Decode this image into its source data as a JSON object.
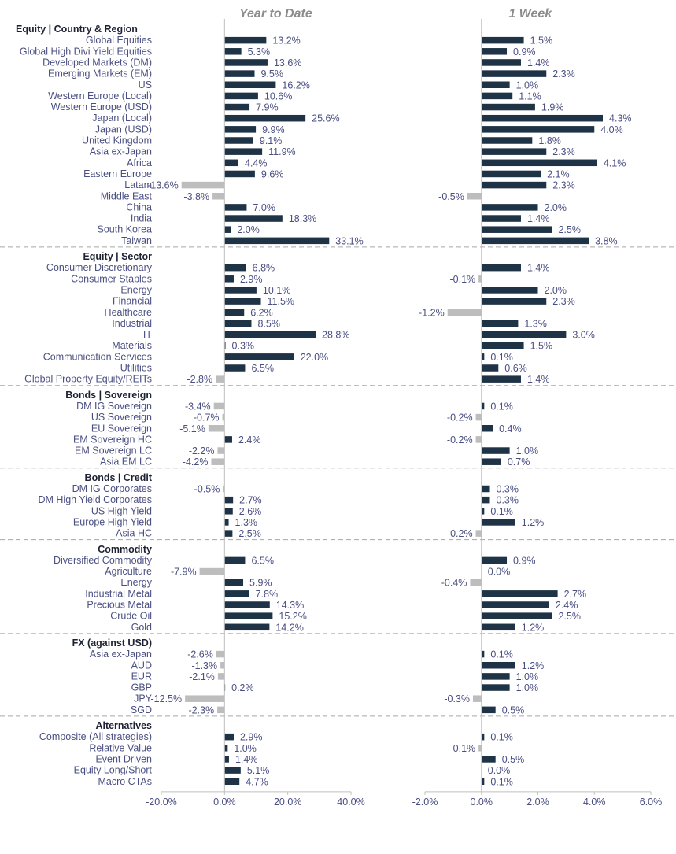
{
  "colors": {
    "positive": "#1f3347",
    "negative": "#bdbdbd",
    "label": "#4a4f82",
    "header": "#1d2233",
    "divider": "#a6a6a6",
    "axis": "#bfbfbf"
  },
  "chart_data": {
    "type": "bar",
    "orientation": "horizontal",
    "grid": false,
    "panels": [
      {
        "title": "Year to Date",
        "xlim": [
          -20,
          40
        ],
        "ticks": [
          "-20.0%",
          "0.0%",
          "20.0%",
          "40.0%"
        ],
        "tick_values": [
          -20,
          0,
          20,
          40
        ]
      },
      {
        "title": "1 Week",
        "xlim": [
          -2,
          6
        ],
        "ticks": [
          "-2.0%",
          "0.0%",
          "2.0%",
          "4.0%",
          "6.0%"
        ],
        "tick_values": [
          -2,
          0,
          2,
          4,
          6
        ]
      }
    ],
    "sections": [
      {
        "title": "Equity | Country & Region",
        "rows": [
          {
            "label": "Global Equities",
            "ytd": 13.2,
            "ytd_label": "13.2%",
            "wk": 1.5,
            "wk_label": "1.5%"
          },
          {
            "label": "Global High Divi Yield Equities",
            "ytd": 5.3,
            "ytd_label": "5.3%",
            "wk": 0.9,
            "wk_label": "0.9%"
          },
          {
            "label": "Developed Markets (DM)",
            "ytd": 13.6,
            "ytd_label": "13.6%",
            "wk": 1.4,
            "wk_label": "1.4%"
          },
          {
            "label": "Emerging Markets (EM)",
            "ytd": 9.5,
            "ytd_label": "9.5%",
            "wk": 2.3,
            "wk_label": "2.3%"
          },
          {
            "label": "US",
            "ytd": 16.2,
            "ytd_label": "16.2%",
            "wk": 1.0,
            "wk_label": "1.0%"
          },
          {
            "label": "Western Europe (Local)",
            "ytd": 10.6,
            "ytd_label": "10.6%",
            "wk": 1.1,
            "wk_label": "1.1%"
          },
          {
            "label": "Western Europe (USD)",
            "ytd": 7.9,
            "ytd_label": "7.9%",
            "wk": 1.9,
            "wk_label": "1.9%"
          },
          {
            "label": "Japan (Local)",
            "ytd": 25.6,
            "ytd_label": "25.6%",
            "wk": 4.3,
            "wk_label": "4.3%"
          },
          {
            "label": "Japan (USD)",
            "ytd": 9.9,
            "ytd_label": "9.9%",
            "wk": 4.0,
            "wk_label": "4.0%"
          },
          {
            "label": "United Kingdom",
            "ytd": 9.1,
            "ytd_label": "9.1%",
            "wk": 1.8,
            "wk_label": "1.8%"
          },
          {
            "label": "Asia ex-Japan",
            "ytd": 11.9,
            "ytd_label": "11.9%",
            "wk": 2.3,
            "wk_label": "2.3%"
          },
          {
            "label": "Africa",
            "ytd": 4.4,
            "ytd_label": "4.4%",
            "wk": 4.1,
            "wk_label": "4.1%"
          },
          {
            "label": "Eastern Europe",
            "ytd": 9.6,
            "ytd_label": "9.6%",
            "wk": 2.1,
            "wk_label": "2.1%"
          },
          {
            "label": "Latam",
            "ytd": -13.6,
            "ytd_label": "-13.6%",
            "wk": 2.3,
            "wk_label": "2.3%"
          },
          {
            "label": "Middle East",
            "ytd": -3.8,
            "ytd_label": "-3.8%",
            "wk": -0.5,
            "wk_label": "-0.5%"
          },
          {
            "label": "China",
            "ytd": 7.0,
            "ytd_label": "7.0%",
            "wk": 2.0,
            "wk_label": "2.0%"
          },
          {
            "label": "India",
            "ytd": 18.3,
            "ytd_label": "18.3%",
            "wk": 1.4,
            "wk_label": "1.4%"
          },
          {
            "label": "South Korea",
            "ytd": 2.0,
            "ytd_label": "2.0%",
            "wk": 2.5,
            "wk_label": "2.5%"
          },
          {
            "label": "Taiwan",
            "ytd": 33.1,
            "ytd_label": "33.1%",
            "wk": 3.8,
            "wk_label": "3.8%"
          }
        ]
      },
      {
        "title": "Equity | Sector",
        "rows": [
          {
            "label": "Consumer Discretionary",
            "ytd": 6.8,
            "ytd_label": "6.8%",
            "wk": 1.4,
            "wk_label": "1.4%"
          },
          {
            "label": "Consumer Staples",
            "ytd": 2.9,
            "ytd_label": "2.9%",
            "wk": -0.1,
            "wk_label": "-0.1%"
          },
          {
            "label": "Energy",
            "ytd": 10.1,
            "ytd_label": "10.1%",
            "wk": 2.0,
            "wk_label": "2.0%"
          },
          {
            "label": "Financial",
            "ytd": 11.5,
            "ytd_label": "11.5%",
            "wk": 2.3,
            "wk_label": "2.3%"
          },
          {
            "label": "Healthcare",
            "ytd": 6.2,
            "ytd_label": "6.2%",
            "wk": -1.2,
            "wk_label": "-1.2%"
          },
          {
            "label": "Industrial",
            "ytd": 8.5,
            "ytd_label": "8.5%",
            "wk": 1.3,
            "wk_label": "1.3%"
          },
          {
            "label": "IT",
            "ytd": 28.8,
            "ytd_label": "28.8%",
            "wk": 3.0,
            "wk_label": "3.0%"
          },
          {
            "label": "Materials",
            "ytd": 0.3,
            "ytd_label": "0.3%",
            "wk": 1.5,
            "wk_label": "1.5%"
          },
          {
            "label": "Communication Services",
            "ytd": 22.0,
            "ytd_label": "22.0%",
            "wk": 0.1,
            "wk_label": "0.1%"
          },
          {
            "label": "Utilities",
            "ytd": 6.5,
            "ytd_label": "6.5%",
            "wk": 0.6,
            "wk_label": "0.6%"
          },
          {
            "label": "Global Property Equity/REITs",
            "ytd": -2.8,
            "ytd_label": "-2.8%",
            "wk": 1.4,
            "wk_label": "1.4%"
          }
        ]
      },
      {
        "title": "Bonds | Sovereign",
        "rows": [
          {
            "label": "DM IG Sovereign",
            "ytd": -3.4,
            "ytd_label": "-3.4%",
            "wk": 0.1,
            "wk_label": "0.1%"
          },
          {
            "label": "US Sovereign",
            "ytd": -0.7,
            "ytd_label": "-0.7%",
            "wk": -0.2,
            "wk_label": "-0.2%"
          },
          {
            "label": "EU Sovereign",
            "ytd": -5.1,
            "ytd_label": "-5.1%",
            "wk": 0.4,
            "wk_label": "0.4%"
          },
          {
            "label": "EM Sovereign HC",
            "ytd": 2.4,
            "ytd_label": "2.4%",
            "wk": -0.2,
            "wk_label": "-0.2%"
          },
          {
            "label": "EM Sovereign LC",
            "ytd": -2.2,
            "ytd_label": "-2.2%",
            "wk": 1.0,
            "wk_label": "1.0%"
          },
          {
            "label": "Asia EM LC",
            "ytd": -4.2,
            "ytd_label": "-4.2%",
            "wk": 0.7,
            "wk_label": "0.7%"
          }
        ]
      },
      {
        "title": "Bonds | Credit",
        "rows": [
          {
            "label": "DM IG Corporates",
            "ytd": -0.5,
            "ytd_label": "-0.5%",
            "wk": 0.3,
            "wk_label": "0.3%"
          },
          {
            "label": "DM High Yield Corporates",
            "ytd": 2.7,
            "ytd_label": "2.7%",
            "wk": 0.3,
            "wk_label": "0.3%"
          },
          {
            "label": "US High Yield",
            "ytd": 2.6,
            "ytd_label": "2.6%",
            "wk": 0.1,
            "wk_label": "0.1%"
          },
          {
            "label": "Europe High Yield",
            "ytd": 1.3,
            "ytd_label": "1.3%",
            "wk": 1.2,
            "wk_label": "1.2%"
          },
          {
            "label": "Asia HC",
            "ytd": 2.5,
            "ytd_label": "2.5%",
            "wk": -0.2,
            "wk_label": "-0.2%"
          }
        ]
      },
      {
        "title": "Commodity",
        "rows": [
          {
            "label": "Diversified Commodity",
            "ytd": 6.5,
            "ytd_label": "6.5%",
            "wk": 0.9,
            "wk_label": "0.9%"
          },
          {
            "label": "Agriculture",
            "ytd": -7.9,
            "ytd_label": "-7.9%",
            "wk": 0.0,
            "wk_label": "0.0%"
          },
          {
            "label": "Energy",
            "ytd": 5.9,
            "ytd_label": "5.9%",
            "wk": -0.4,
            "wk_label": "-0.4%"
          },
          {
            "label": "Industrial Metal",
            "ytd": 7.8,
            "ytd_label": "7.8%",
            "wk": 2.7,
            "wk_label": "2.7%"
          },
          {
            "label": "Precious Metal",
            "ytd": 14.3,
            "ytd_label": "14.3%",
            "wk": 2.4,
            "wk_label": "2.4%"
          },
          {
            "label": "Crude Oil",
            "ytd": 15.2,
            "ytd_label": "15.2%",
            "wk": 2.5,
            "wk_label": "2.5%"
          },
          {
            "label": "Gold",
            "ytd": 14.2,
            "ytd_label": "14.2%",
            "wk": 1.2,
            "wk_label": "1.2%"
          }
        ]
      },
      {
        "title": "FX (against USD)",
        "rows": [
          {
            "label": "Asia ex-Japan",
            "ytd": -2.6,
            "ytd_label": "-2.6%",
            "wk": 0.1,
            "wk_label": "0.1%"
          },
          {
            "label": "AUD",
            "ytd": -1.3,
            "ytd_label": "-1.3%",
            "wk": 1.2,
            "wk_label": "1.2%"
          },
          {
            "label": "EUR",
            "ytd": -2.1,
            "ytd_label": "-2.1%",
            "wk": 1.0,
            "wk_label": "1.0%"
          },
          {
            "label": "GBP",
            "ytd": 0.2,
            "ytd_label": "0.2%",
            "wk": 1.0,
            "wk_label": "1.0%"
          },
          {
            "label": "JPY",
            "ytd": -12.5,
            "ytd_label": "-12.5%",
            "wk": -0.3,
            "wk_label": "-0.3%"
          },
          {
            "label": "SGD",
            "ytd": -2.3,
            "ytd_label": "-2.3%",
            "wk": 0.5,
            "wk_label": "0.5%"
          }
        ]
      },
      {
        "title": "Alternatives",
        "rows": [
          {
            "label": "Composite (All strategies)",
            "ytd": 2.9,
            "ytd_label": "2.9%",
            "wk": 0.1,
            "wk_label": "0.1%"
          },
          {
            "label": "Relative Value",
            "ytd": 1.0,
            "ytd_label": "1.0%",
            "wk": -0.1,
            "wk_label": "-0.1%"
          },
          {
            "label": "Event Driven",
            "ytd": 1.4,
            "ytd_label": "1.4%",
            "wk": 0.5,
            "wk_label": "0.5%"
          },
          {
            "label": "Equity Long/Short",
            "ytd": 5.1,
            "ytd_label": "5.1%",
            "wk": 0.0,
            "wk_label": "0.0%"
          },
          {
            "label": "Macro CTAs",
            "ytd": 4.7,
            "ytd_label": "4.7%",
            "wk": 0.1,
            "wk_label": "0.1%"
          }
        ]
      }
    ]
  }
}
